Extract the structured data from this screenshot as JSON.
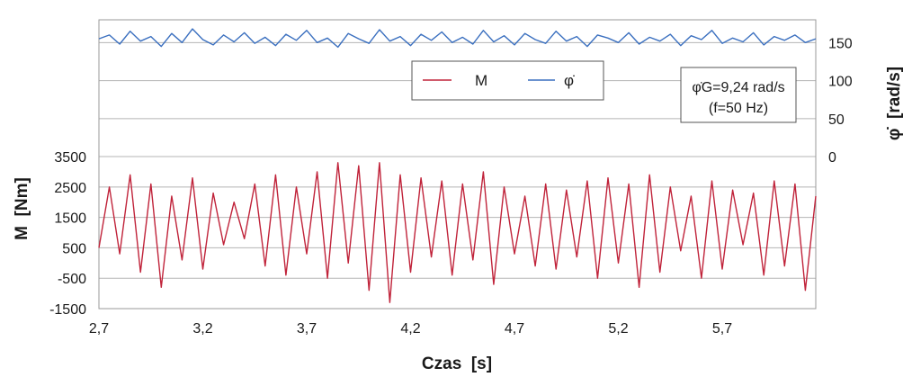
{
  "chart_data": {
    "type": "line",
    "xlabel": "Czas  [s]",
    "ylabel_left": "M  [Nm]",
    "ylabel_right": "φ̇  [rad/s]",
    "xlim": [
      2.7,
      6.15
    ],
    "x_ticks": [
      "2,7",
      "3,2",
      "3,7",
      "4,2",
      "4,7",
      "5,2",
      "5,7"
    ],
    "x_tick_values": [
      2.7,
      3.2,
      3.7,
      4.2,
      4.7,
      5.2,
      5.7
    ],
    "left_axis": {
      "ticks": [
        "-1500",
        "-500",
        "500",
        "1500",
        "2500",
        "3500"
      ],
      "tick_values": [
        -1500,
        -500,
        500,
        1500,
        2500,
        3500
      ],
      "ylim": [
        -1500,
        8000
      ]
    },
    "right_axis": {
      "ticks": [
        "0",
        "50",
        "100",
        "150"
      ],
      "tick_values": [
        0,
        50,
        100,
        150
      ],
      "ylim": [
        -200,
        180
      ]
    },
    "grid": true,
    "legend": {
      "placement": "top-center",
      "entries": [
        "M",
        "φ̇"
      ]
    },
    "annotation": {
      "line1": "φ̇G=9,24 rad/s",
      "line2": "(f=50 Hz)"
    },
    "series": [
      {
        "name": "M",
        "axis": "left",
        "color": "#c0233a",
        "x": [
          2.7,
          2.75,
          2.8,
          2.85,
          2.9,
          2.95,
          3.0,
          3.05,
          3.1,
          3.15,
          3.2,
          3.25,
          3.3,
          3.35,
          3.4,
          3.45,
          3.5,
          3.55,
          3.6,
          3.65,
          3.7,
          3.75,
          3.8,
          3.85,
          3.9,
          3.95,
          4.0,
          4.05,
          4.1,
          4.15,
          4.2,
          4.25,
          4.3,
          4.35,
          4.4,
          4.45,
          4.5,
          4.55,
          4.6,
          4.65,
          4.7,
          4.75,
          4.8,
          4.85,
          4.9,
          4.95,
          5.0,
          5.05,
          5.1,
          5.15,
          5.2,
          5.25,
          5.3,
          5.35,
          5.4,
          5.45,
          5.5,
          5.55,
          5.6,
          5.65,
          5.7,
          5.75,
          5.8,
          5.85,
          5.9,
          5.95,
          6.0,
          6.05,
          6.1,
          6.15
        ],
        "values": [
          500,
          2500,
          300,
          2900,
          -300,
          2600,
          -800,
          2200,
          100,
          2800,
          -200,
          2300,
          600,
          2000,
          800,
          2600,
          -100,
          2900,
          -400,
          2500,
          300,
          3000,
          -500,
          3300,
          0,
          3200,
          -900,
          3300,
          -1300,
          2900,
          -300,
          2800,
          200,
          2700,
          -400,
          2600,
          100,
          3000,
          -700,
          2500,
          300,
          2200,
          -100,
          2600,
          -200,
          2400,
          200,
          2700,
          -500,
          2800,
          0,
          2600,
          -800,
          2900,
          -300,
          2500,
          400,
          2200,
          -500,
          2700,
          -200,
          2400,
          600,
          2300,
          -400,
          2700,
          -100,
          2600,
          -900,
          2200
        ]
      },
      {
        "name": "φ̇",
        "axis": "right",
        "color": "#3a6fbf",
        "x": [
          2.7,
          2.75,
          2.8,
          2.85,
          2.9,
          2.95,
          3.0,
          3.05,
          3.1,
          3.15,
          3.2,
          3.25,
          3.3,
          3.35,
          3.4,
          3.45,
          3.5,
          3.55,
          3.6,
          3.65,
          3.7,
          3.75,
          3.8,
          3.85,
          3.9,
          3.95,
          4.0,
          4.05,
          4.1,
          4.15,
          4.2,
          4.25,
          4.3,
          4.35,
          4.4,
          4.45,
          4.5,
          4.55,
          4.6,
          4.65,
          4.7,
          4.75,
          4.8,
          4.85,
          4.9,
          4.95,
          5.0,
          5.05,
          5.1,
          5.15,
          5.2,
          5.25,
          5.3,
          5.35,
          5.4,
          5.45,
          5.5,
          5.55,
          5.6,
          5.65,
          5.7,
          5.75,
          5.8,
          5.85,
          5.9,
          5.95,
          6.0,
          6.05,
          6.1,
          6.15
        ],
        "values": [
          155,
          160,
          148,
          165,
          152,
          158,
          145,
          162,
          150,
          168,
          154,
          147,
          160,
          151,
          163,
          149,
          157,
          146,
          161,
          153,
          166,
          150,
          156,
          144,
          162,
          155,
          149,
          167,
          152,
          158,
          146,
          161,
          153,
          164,
          150,
          157,
          148,
          166,
          151,
          159,
          147,
          162,
          154,
          149,
          165,
          152,
          158,
          145,
          160,
          156,
          150,
          163,
          148,
          157,
          152,
          161,
          146,
          159,
          154,
          166,
          149,
          156,
          151,
          163,
          147,
          158,
          153,
          160,
          150,
          155
        ]
      }
    ]
  }
}
